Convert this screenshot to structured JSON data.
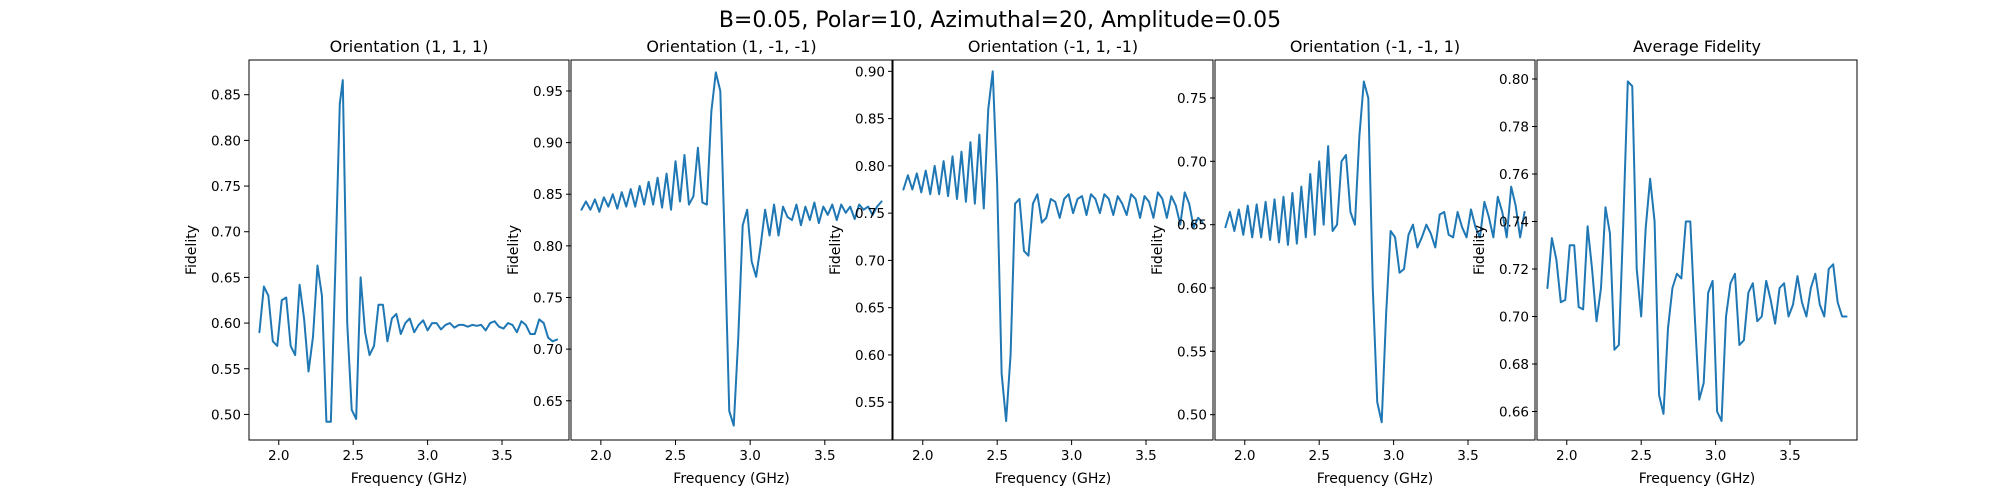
{
  "figure": {
    "suptitle": "B=0.05, Polar=10, Azimuthal=20, Amplitude=0.05"
  },
  "colors": {
    "line": "#1f77b4"
  },
  "chart_data": [
    {
      "type": "line",
      "title": "Orientation (1, 1, 1)",
      "xlabel": "Frequency (GHz)",
      "ylabel": "Fidelity",
      "xlim": [
        1.8,
        3.95
      ],
      "ylim": [
        0.472,
        0.888
      ],
      "xticks": [
        2.0,
        2.5,
        3.0,
        3.5
      ],
      "xtick_labels": [
        "2.0",
        "2.5",
        "3.0",
        "3.5"
      ],
      "yticks": [
        0.5,
        0.55,
        0.6,
        0.65,
        0.7,
        0.75,
        0.8,
        0.85
      ],
      "ytick_labels": [
        "0.50",
        "0.55",
        "0.60",
        "0.65",
        "0.70",
        "0.75",
        "0.80",
        "0.85"
      ],
      "grid": false,
      "series": [
        {
          "x": [
            1.87,
            1.9,
            1.93,
            1.96,
            1.99,
            2.02,
            2.05,
            2.08,
            2.11,
            2.14,
            2.17,
            2.2,
            2.23,
            2.26,
            2.29,
            2.32,
            2.35,
            2.38,
            2.41,
            2.43,
            2.46,
            2.49,
            2.52,
            2.55,
            2.58,
            2.61,
            2.64,
            2.67,
            2.7,
            2.73,
            2.76,
            2.79,
            2.82,
            2.85,
            2.88,
            2.91,
            2.94,
            2.97,
            3.0,
            3.03,
            3.06,
            3.09,
            3.12,
            3.15,
            3.18,
            3.21,
            3.24,
            3.27,
            3.3,
            3.33,
            3.36,
            3.39,
            3.42,
            3.45,
            3.48,
            3.51,
            3.54,
            3.57,
            3.6,
            3.63,
            3.66,
            3.69,
            3.72,
            3.75,
            3.78,
            3.81,
            3.84,
            3.87
          ],
          "y": [
            0.59,
            0.64,
            0.63,
            0.58,
            0.575,
            0.625,
            0.628,
            0.575,
            0.565,
            0.642,
            0.605,
            0.547,
            0.585,
            0.663,
            0.63,
            0.492,
            0.492,
            0.66,
            0.84,
            0.866,
            0.6,
            0.505,
            0.495,
            0.65,
            0.59,
            0.565,
            0.575,
            0.62,
            0.62,
            0.58,
            0.605,
            0.61,
            0.588,
            0.6,
            0.605,
            0.59,
            0.598,
            0.603,
            0.592,
            0.6,
            0.6,
            0.593,
            0.598,
            0.6,
            0.595,
            0.598,
            0.598,
            0.596,
            0.598,
            0.597,
            0.598,
            0.592,
            0.6,
            0.602,
            0.596,
            0.594,
            0.6,
            0.598,
            0.59,
            0.602,
            0.598,
            0.588,
            0.588,
            0.604,
            0.6,
            0.584,
            0.58,
            0.582
          ]
        }
      ]
    },
    {
      "type": "line",
      "title": "Orientation (1, -1, -1)",
      "xlabel": "Frequency (GHz)",
      "ylabel": "Fidelity",
      "xlim": [
        1.8,
        3.95
      ],
      "ylim": [
        0.612,
        0.98
      ],
      "xticks": [
        2.0,
        2.5,
        3.0,
        3.5
      ],
      "xtick_labels": [
        "2.0",
        "2.5",
        "3.0",
        "3.5"
      ],
      "yticks": [
        0.65,
        0.7,
        0.75,
        0.8,
        0.85,
        0.9,
        0.95
      ],
      "ytick_labels": [
        "0.65",
        "0.70",
        "0.75",
        "0.80",
        "0.85",
        "0.90",
        "0.95"
      ],
      "grid": false,
      "series": [
        {
          "x": [
            1.87,
            1.9,
            1.93,
            1.96,
            1.99,
            2.02,
            2.05,
            2.08,
            2.11,
            2.14,
            2.17,
            2.2,
            2.23,
            2.26,
            2.29,
            2.32,
            2.35,
            2.38,
            2.41,
            2.44,
            2.47,
            2.5,
            2.53,
            2.56,
            2.59,
            2.62,
            2.65,
            2.68,
            2.71,
            2.74,
            2.77,
            2.8,
            2.83,
            2.86,
            2.89,
            2.92,
            2.95,
            2.98,
            3.01,
            3.04,
            3.07,
            3.1,
            3.13,
            3.16,
            3.19,
            3.22,
            3.25,
            3.28,
            3.31,
            3.34,
            3.37,
            3.4,
            3.43,
            3.46,
            3.49,
            3.52,
            3.55,
            3.58,
            3.61,
            3.64,
            3.67,
            3.7,
            3.73,
            3.76,
            3.79,
            3.82,
            3.85,
            3.88
          ],
          "y": [
            0.835,
            0.843,
            0.835,
            0.845,
            0.833,
            0.847,
            0.838,
            0.85,
            0.836,
            0.852,
            0.838,
            0.855,
            0.838,
            0.858,
            0.84,
            0.862,
            0.84,
            0.866,
            0.837,
            0.87,
            0.835,
            0.882,
            0.843,
            0.888,
            0.84,
            0.848,
            0.895,
            0.842,
            0.84,
            0.93,
            0.968,
            0.95,
            0.8,
            0.64,
            0.626,
            0.71,
            0.82,
            0.835,
            0.785,
            0.77,
            0.8,
            0.835,
            0.81,
            0.84,
            0.81,
            0.838,
            0.828,
            0.825,
            0.84,
            0.82,
            0.838,
            0.825,
            0.842,
            0.822,
            0.838,
            0.83,
            0.84,
            0.825,
            0.84,
            0.832,
            0.838,
            0.826,
            0.84,
            0.835,
            0.838,
            0.83,
            0.838,
            0.843
          ]
        }
      ]
    },
    {
      "type": "line",
      "title": "Orientation (-1, 1, -1)",
      "xlabel": "Frequency (GHz)",
      "ylabel": "Fidelity",
      "xlim": [
        1.8,
        3.95
      ],
      "ylim": [
        0.51,
        0.912
      ],
      "xticks": [
        2.0,
        2.5,
        3.0,
        3.5
      ],
      "xtick_labels": [
        "2.0",
        "2.5",
        "3.0",
        "3.5"
      ],
      "yticks": [
        0.55,
        0.6,
        0.65,
        0.7,
        0.75,
        0.8,
        0.85,
        0.9
      ],
      "ytick_labels": [
        "0.55",
        "0.60",
        "0.65",
        "0.70",
        "0.75",
        "0.80",
        "0.85",
        "0.90"
      ],
      "grid": false,
      "series": [
        {
          "x": [
            1.87,
            1.9,
            1.93,
            1.96,
            1.99,
            2.02,
            2.05,
            2.08,
            2.11,
            2.14,
            2.17,
            2.2,
            2.23,
            2.26,
            2.29,
            2.32,
            2.35,
            2.38,
            2.41,
            2.44,
            2.47,
            2.5,
            2.53,
            2.56,
            2.59,
            2.62,
            2.65,
            2.68,
            2.71,
            2.74,
            2.77,
            2.8,
            2.83,
            2.86,
            2.89,
            2.92,
            2.95,
            2.98,
            3.01,
            3.04,
            3.07,
            3.1,
            3.13,
            3.16,
            3.19,
            3.22,
            3.25,
            3.28,
            3.31,
            3.34,
            3.37,
            3.4,
            3.43,
            3.46,
            3.49,
            3.52,
            3.55,
            3.58,
            3.61,
            3.64,
            3.67,
            3.7,
            3.73,
            3.76,
            3.79,
            3.82,
            3.85,
            3.88
          ],
          "y": [
            0.775,
            0.79,
            0.775,
            0.792,
            0.772,
            0.795,
            0.77,
            0.8,
            0.77,
            0.805,
            0.768,
            0.81,
            0.765,
            0.815,
            0.762,
            0.825,
            0.76,
            0.833,
            0.755,
            0.86,
            0.9,
            0.78,
            0.58,
            0.53,
            0.6,
            0.76,
            0.765,
            0.71,
            0.705,
            0.76,
            0.77,
            0.74,
            0.745,
            0.765,
            0.762,
            0.745,
            0.765,
            0.77,
            0.75,
            0.765,
            0.768,
            0.748,
            0.77,
            0.765,
            0.75,
            0.77,
            0.765,
            0.748,
            0.768,
            0.76,
            0.748,
            0.77,
            0.765,
            0.745,
            0.768,
            0.762,
            0.745,
            0.772,
            0.765,
            0.745,
            0.768,
            0.758,
            0.738,
            0.772,
            0.76,
            0.735,
            0.745,
            0.74
          ]
        }
      ]
    },
    {
      "type": "line",
      "title": "Orientation (-1, -1, 1)",
      "xlabel": "Frequency (GHz)",
      "ylabel": "Fidelity",
      "xlim": [
        1.8,
        3.95
      ],
      "ylim": [
        0.48,
        0.78
      ],
      "xticks": [
        2.0,
        2.5,
        3.0,
        3.5
      ],
      "xtick_labels": [
        "2.0",
        "2.5",
        "3.0",
        "3.5"
      ],
      "yticks": [
        0.5,
        0.55,
        0.6,
        0.65,
        0.7,
        0.75
      ],
      "ytick_labels": [
        "0.50",
        "0.55",
        "0.60",
        "0.65",
        "0.70",
        "0.75"
      ],
      "grid": false,
      "series": [
        {
          "x": [
            1.87,
            1.9,
            1.93,
            1.96,
            1.99,
            2.02,
            2.05,
            2.08,
            2.11,
            2.14,
            2.17,
            2.2,
            2.23,
            2.26,
            2.29,
            2.32,
            2.35,
            2.38,
            2.41,
            2.44,
            2.47,
            2.5,
            2.53,
            2.56,
            2.59,
            2.62,
            2.65,
            2.68,
            2.71,
            2.74,
            2.77,
            2.8,
            2.83,
            2.86,
            2.89,
            2.92,
            2.95,
            2.98,
            3.01,
            3.04,
            3.07,
            3.1,
            3.13,
            3.16,
            3.19,
            3.22,
            3.25,
            3.28,
            3.31,
            3.34,
            3.37,
            3.4,
            3.43,
            3.46,
            3.49,
            3.52,
            3.55,
            3.58,
            3.61,
            3.64,
            3.67,
            3.7,
            3.73,
            3.76,
            3.79,
            3.82,
            3.85,
            3.88
          ],
          "y": [
            0.648,
            0.66,
            0.645,
            0.662,
            0.642,
            0.665,
            0.64,
            0.666,
            0.64,
            0.668,
            0.638,
            0.67,
            0.636,
            0.672,
            0.634,
            0.675,
            0.635,
            0.68,
            0.64,
            0.69,
            0.642,
            0.7,
            0.65,
            0.712,
            0.645,
            0.65,
            0.7,
            0.705,
            0.66,
            0.65,
            0.72,
            0.763,
            0.75,
            0.6,
            0.51,
            0.494,
            0.58,
            0.645,
            0.64,
            0.612,
            0.615,
            0.642,
            0.65,
            0.632,
            0.64,
            0.65,
            0.643,
            0.632,
            0.658,
            0.66,
            0.642,
            0.64,
            0.66,
            0.648,
            0.64,
            0.662,
            0.648,
            0.64,
            0.668,
            0.656,
            0.64,
            0.672,
            0.66,
            0.64,
            0.68,
            0.665,
            0.64,
            0.66
          ]
        }
      ]
    },
    {
      "type": "line",
      "title": "Average Fidelity",
      "xlabel": "Frequency (GHz)",
      "ylabel": "Fidelity",
      "xlim": [
        1.8,
        3.95
      ],
      "ylim": [
        0.648,
        0.808
      ],
      "xticks": [
        2.0,
        2.5,
        3.0,
        3.5
      ],
      "xtick_labels": [
        "2.0",
        "2.5",
        "3.0",
        "3.5"
      ],
      "yticks": [
        0.66,
        0.68,
        0.7,
        0.72,
        0.74,
        0.76,
        0.78,
        0.8
      ],
      "ytick_labels": [
        "0.66",
        "0.68",
        "0.70",
        "0.72",
        "0.74",
        "0.76",
        "0.78",
        "0.80"
      ],
      "grid": false,
      "series": [
        {
          "x": [
            1.87,
            1.9,
            1.93,
            1.96,
            1.99,
            2.02,
            2.05,
            2.08,
            2.11,
            2.14,
            2.17,
            2.2,
            2.23,
            2.26,
            2.29,
            2.32,
            2.35,
            2.38,
            2.41,
            2.44,
            2.47,
            2.5,
            2.53,
            2.56,
            2.59,
            2.62,
            2.65,
            2.68,
            2.71,
            2.74,
            2.77,
            2.8,
            2.83,
            2.86,
            2.89,
            2.92,
            2.95,
            2.98,
            3.01,
            3.04,
            3.07,
            3.1,
            3.13,
            3.16,
            3.19,
            3.22,
            3.25,
            3.28,
            3.31,
            3.34,
            3.37,
            3.4,
            3.43,
            3.46,
            3.49,
            3.52,
            3.55,
            3.58,
            3.61,
            3.64,
            3.67,
            3.7,
            3.73,
            3.76,
            3.79,
            3.82,
            3.85,
            3.88
          ],
          "y": [
            0.712,
            0.733,
            0.724,
            0.706,
            0.707,
            0.73,
            0.73,
            0.704,
            0.703,
            0.738,
            0.72,
            0.698,
            0.712,
            0.746,
            0.735,
            0.686,
            0.688,
            0.74,
            0.799,
            0.797,
            0.72,
            0.7,
            0.737,
            0.758,
            0.74,
            0.667,
            0.659,
            0.695,
            0.712,
            0.718,
            0.716,
            0.74,
            0.74,
            0.7,
            0.665,
            0.672,
            0.71,
            0.715,
            0.66,
            0.656,
            0.7,
            0.714,
            0.718,
            0.688,
            0.69,
            0.71,
            0.714,
            0.698,
            0.7,
            0.715,
            0.707,
            0.697,
            0.712,
            0.714,
            0.7,
            0.705,
            0.717,
            0.706,
            0.7,
            0.712,
            0.718,
            0.705,
            0.7,
            0.72,
            0.722,
            0.706,
            0.7,
            0.7
          ]
        }
      ]
    }
  ]
}
